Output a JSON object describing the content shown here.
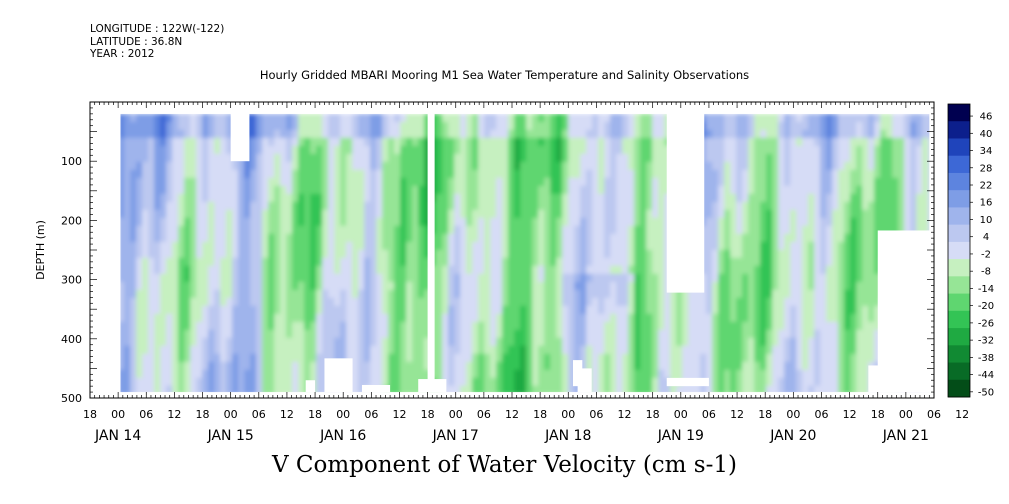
{
  "header": {
    "longitude": "LONGITUDE : 122W(-122)",
    "latitude": "LATITUDE : 36.8N",
    "year": "YEAR : 2012"
  },
  "chart_data": {
    "type": "heatmap",
    "title": "Hourly Gridded MBARI Mooring M1 Sea Water Temperature and Salinity Observations",
    "xlabel": "V Component of Water Velocity (cm s-1)",
    "ylabel": "DEPTH (m)",
    "ylim": [
      500,
      0
    ],
    "yticks": [
      100,
      200,
      300,
      400,
      500
    ],
    "hour_ticks": [
      "18",
      "00",
      "06",
      "12",
      "18",
      "00",
      "06",
      "12",
      "18",
      "00",
      "06",
      "12",
      "18",
      "00",
      "06",
      "12",
      "18",
      "00",
      "06",
      "12",
      "18",
      "00",
      "06",
      "12",
      "18",
      "00",
      "06",
      "12",
      "18",
      "00",
      "06",
      "12"
    ],
    "day_labels": [
      "JAN 14",
      "JAN 15",
      "JAN 16",
      "JAN 17",
      "JAN 18",
      "JAN 19",
      "JAN 20",
      "JAN 21"
    ],
    "colorbar": {
      "levels": [
        "46",
        "40",
        "34",
        "28",
        "22",
        "16",
        "10",
        "4",
        "-2",
        "-8",
        "-14",
        "-20",
        "-26",
        "-32",
        "-38",
        "-44",
        "-50"
      ],
      "range": [
        -50,
        52
      ],
      "colors": [
        "#000050",
        "#0c1f8c",
        "#1f44bb",
        "#3d68d6",
        "#5d84df",
        "#7e9de6",
        "#9fb4ec",
        "#bcc8f0",
        "#d6dcf6",
        "#c6f0c0",
        "#96e596",
        "#5fd670",
        "#33c455",
        "#1faa42",
        "#118a33",
        "#086b26",
        "#034d18"
      ]
    },
    "data_x_range_hours": [
      -6,
      174
    ],
    "depth_range_observed": [
      20,
      490
    ],
    "note_empty": ""
  }
}
